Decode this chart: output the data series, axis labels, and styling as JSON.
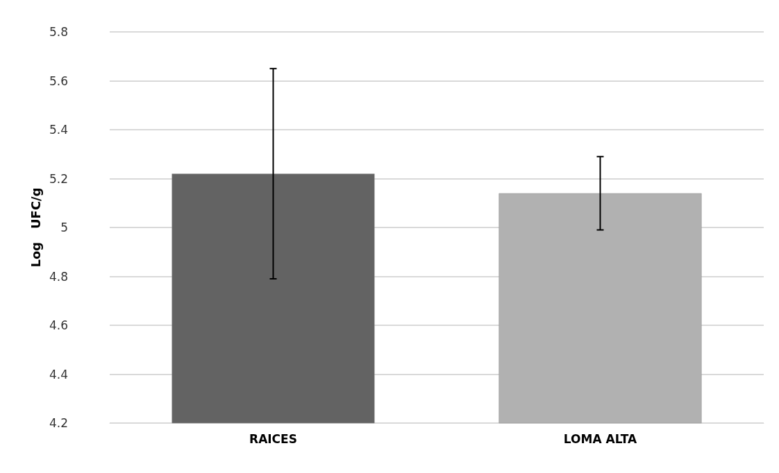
{
  "chart_data": {
    "type": "bar",
    "ylabel": "Log   UFC/g",
    "categories": [
      "RAICES",
      "LOMA ALTA"
    ],
    "values": [
      5.22,
      5.14
    ],
    "errors": [
      0.43,
      0.15
    ],
    "colors": [
      "#636363",
      "#b1b1b1"
    ],
    "ylim": [
      4.2,
      5.8
    ],
    "yticks": [
      {
        "value": 4.2,
        "label": "4.2"
      },
      {
        "value": 4.4,
        "label": "4.4"
      },
      {
        "value": 4.6,
        "label": "4.6"
      },
      {
        "value": 4.8,
        "label": "4.8"
      },
      {
        "value": 5,
        "label": "5"
      },
      {
        "value": 5.2,
        "label": "5.2"
      },
      {
        "value": 5.4,
        "label": "5.4"
      },
      {
        "value": 5.6,
        "label": "5.6"
      },
      {
        "value": 5.8,
        "label": "5.8"
      }
    ],
    "grid": true
  }
}
